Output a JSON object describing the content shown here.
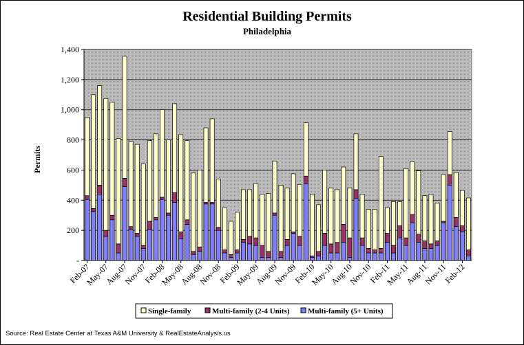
{
  "chart_data": {
    "type": "bar",
    "stacked": true,
    "title": "Residential Building Permits",
    "subtitle": "Philadelphia",
    "ylabel": "Permits",
    "xlabel": "",
    "ylim": [
      0,
      1400
    ],
    "ytick_values": [
      0,
      200,
      400,
      600,
      800,
      1000,
      1200,
      1400
    ],
    "ytick_labels": [
      "-",
      "200",
      "400",
      "600",
      "800",
      "1,000",
      "1,200",
      "1,400"
    ],
    "xtick_labels": [
      "Feb-07",
      "May-07",
      "Aug-07",
      "Nov-07",
      "Feb-08",
      "May-08",
      "Aug-08",
      "Nov-08",
      "Feb-09",
      "May-09",
      "Aug-09",
      "Nov-09",
      "Feb-10",
      "May-10",
      "Aug-10",
      "Nov-10",
      "Feb-11",
      "May-11",
      "Aug-11",
      "Nov-11",
      "Feb-12"
    ],
    "categories": [
      "Feb-07",
      "Mar-07",
      "Apr-07",
      "May-07",
      "Jun-07",
      "Jul-07",
      "Aug-07",
      "Sep-07",
      "Oct-07",
      "Nov-07",
      "Dec-07",
      "Jan-08",
      "Feb-08",
      "Mar-08",
      "Apr-08",
      "May-08",
      "Jun-08",
      "Jul-08",
      "Aug-08",
      "Sep-08",
      "Oct-08",
      "Nov-08",
      "Dec-08",
      "Jan-09",
      "Feb-09",
      "Mar-09",
      "Apr-09",
      "May-09",
      "Jun-09",
      "Jul-09",
      "Aug-09",
      "Sep-09",
      "Oct-09",
      "Nov-09",
      "Dec-09",
      "Jan-10",
      "Feb-10",
      "Mar-10",
      "Apr-10",
      "May-10",
      "Jun-10",
      "Jul-10",
      "Aug-10",
      "Sep-10",
      "Oct-10",
      "Nov-10",
      "Dec-10",
      "Jan-11",
      "Feb-11",
      "Mar-11",
      "Apr-11",
      "May-11",
      "Jun-11",
      "Jul-11",
      "Aug-11",
      "Sep-11",
      "Oct-11",
      "Nov-11",
      "Dec-11",
      "Jan-12",
      "Feb-12",
      "Mar-12"
    ],
    "series": [
      {
        "name": "Multi-family (5+ Units)",
        "color": "#8080ff",
        "values": [
          405,
          325,
          440,
          160,
          270,
          50,
          490,
          205,
          160,
          80,
          205,
          270,
          405,
          300,
          385,
          145,
          240,
          40,
          60,
          375,
          375,
          200,
          50,
          20,
          50,
          120,
          110,
          100,
          20,
          20,
          300,
          20,
          100,
          180,
          100,
          510,
          20,
          30,
          100,
          50,
          50,
          120,
          20,
          410,
          100,
          50,
          50,
          50,
          120,
          50,
          150,
          100,
          250,
          120,
          80,
          80,
          100,
          250,
          500,
          225,
          190,
          30
        ]
      },
      {
        "name": "Multi-family (2-4 Units)",
        "color": "#993366",
        "values": [
          25,
          20,
          60,
          40,
          30,
          60,
          55,
          20,
          20,
          20,
          55,
          15,
          15,
          15,
          65,
          45,
          30,
          20,
          30,
          10,
          10,
          20,
          20,
          20,
          20,
          20,
          50,
          50,
          80,
          40,
          15,
          40,
          40,
          10,
          60,
          50,
          10,
          30,
          80,
          60,
          70,
          120,
          130,
          60,
          50,
          30,
          20,
          30,
          60,
          50,
          80,
          50,
          55,
          55,
          50,
          30,
          30,
          10,
          70,
          60,
          40,
          40
        ]
      },
      {
        "name": "Single-family",
        "color": "#ffffcc",
        "values": [
          520,
          755,
          660,
          875,
          750,
          700,
          810,
          565,
          590,
          540,
          535,
          555,
          580,
          485,
          590,
          645,
          525,
          520,
          510,
          495,
          555,
          320,
          280,
          220,
          250,
          330,
          310,
          360,
          340,
          385,
          345,
          440,
          340,
          385,
          345,
          355,
          410,
          310,
          420,
          370,
          350,
          380,
          330,
          370,
          290,
          260,
          270,
          610,
          170,
          290,
          160,
          460,
          350,
          420,
          300,
          330,
          250,
          310,
          285,
          300,
          235,
          345
        ]
      }
    ]
  },
  "legend": {
    "items": [
      {
        "label": "Single-family",
        "color": "#ffffcc"
      },
      {
        "label": "Multi-family (2-4 Units)",
        "color": "#993366"
      },
      {
        "label": "Multi-family (5+ Units)",
        "color": "#8080ff"
      }
    ]
  },
  "source_note": "Source: Real Estate Center at Texas A&M University & RealEstateAnalysis.us"
}
